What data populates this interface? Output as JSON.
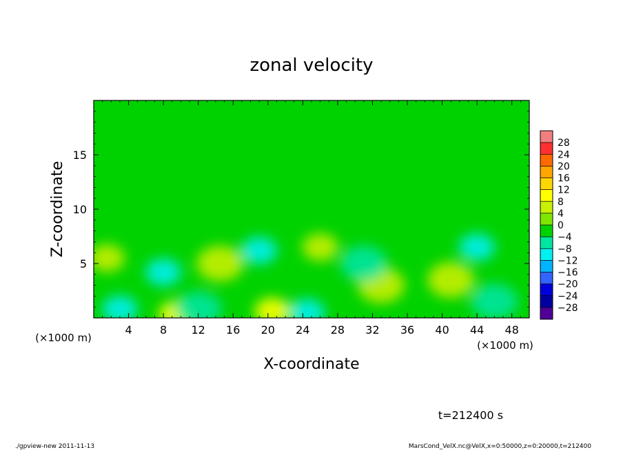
{
  "chart_data": {
    "type": "heatmap",
    "title": "zonal velocity",
    "xlabel": "X-coordinate",
    "ylabel": "Z-coordinate",
    "x_unit_left": "(×1000 m)",
    "x_unit_right": "(×1000 m)",
    "xlim": [
      0,
      50
    ],
    "ylim": [
      0,
      20
    ],
    "x_ticks": [
      "4",
      "8",
      "12",
      "16",
      "20",
      "24",
      "28",
      "32",
      "36",
      "40",
      "44",
      "48"
    ],
    "y_ticks": [
      "5",
      "10",
      "15"
    ],
    "colorbar_labels": [
      "28",
      "24",
      "20",
      "16",
      "12",
      "8",
      "4",
      "0",
      "−4",
      "−8",
      "−12",
      "−16",
      "−20",
      "−24",
      "−28"
    ],
    "colorbar_colors": [
      "#f08080",
      "#ff3030",
      "#ff6a00",
      "#ffa500",
      "#ffd700",
      "#ffff00",
      "#c8f000",
      "#80e600",
      "#00d200",
      "#00e6a0",
      "#00f0f0",
      "#00b4ff",
      "#3264ff",
      "#0000dc",
      "#0000a0",
      "#500096"
    ],
    "time_label": "t=212400 s",
    "features": [
      {
        "x": 9.5,
        "z": 0.3,
        "value": 12
      },
      {
        "x": 20.5,
        "z": 0.6,
        "value": 10
      },
      {
        "x": 1.5,
        "z": 5.5,
        "value": 8
      },
      {
        "x": 26,
        "z": 6.5,
        "value": 8
      },
      {
        "x": 14.5,
        "z": 5.0,
        "value": 6
      },
      {
        "x": 41,
        "z": 3.5,
        "value": 6
      },
      {
        "x": 33,
        "z": 3.0,
        "value": 5
      },
      {
        "x": 8,
        "z": 4.2,
        "value": -9
      },
      {
        "x": 19,
        "z": 6.2,
        "value": -10
      },
      {
        "x": 44,
        "z": 6.5,
        "value": -9
      },
      {
        "x": 31,
        "z": 5.0,
        "value": -7
      },
      {
        "x": 24.5,
        "z": 0.5,
        "value": -10
      },
      {
        "x": 3,
        "z": 0.8,
        "value": -8
      },
      {
        "x": 12,
        "z": 0.8,
        "value": -7
      },
      {
        "x": 46,
        "z": 1.5,
        "value": -6
      }
    ]
  },
  "footer": {
    "left": "./gpview-new   2011-11-13",
    "right": "MarsCond_VelX.nc@VelX,x=0:50000,z=0:20000,t=212400"
  }
}
